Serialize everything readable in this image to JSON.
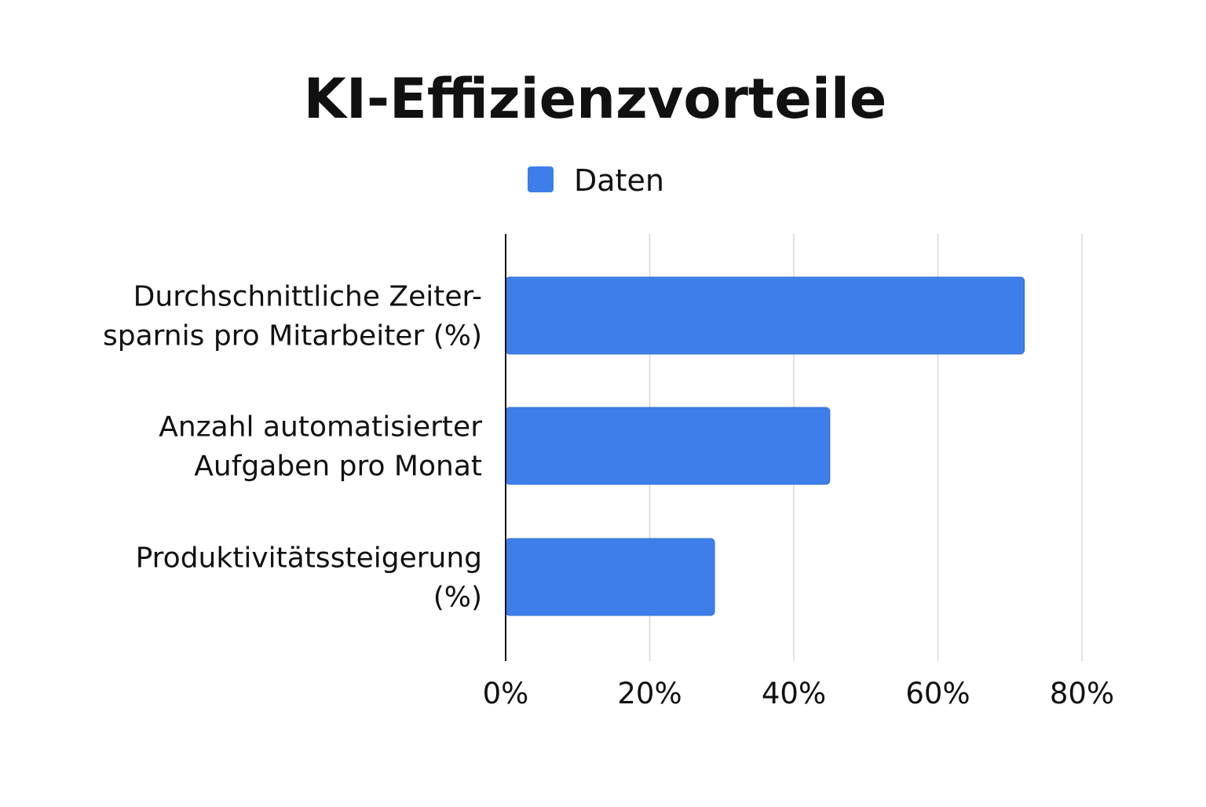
{
  "chart_data": {
    "type": "bar",
    "orientation": "horizontal",
    "title": "KI-Effizienzvorteile",
    "legend": {
      "position": "top",
      "entries": [
        "Daten"
      ]
    },
    "categories": [
      [
        "Durchschnittliche Zeiter-",
        "sparnis pro Mitarbeiter (%)"
      ],
      [
        "Anzahl automatisierter",
        "Aufgaben pro Monat"
      ],
      [
        "Produktivitätssteigerung",
        "(%)"
      ]
    ],
    "series": [
      {
        "name": "Daten",
        "color": "#3d7eea",
        "values": [
          72,
          45,
          29
        ]
      }
    ],
    "x_ticks": [
      "0%",
      "20%",
      "40%",
      "60%",
      "80%"
    ],
    "x_tick_values": [
      0,
      20,
      40,
      60,
      80
    ],
    "xlim": [
      0,
      80
    ],
    "grid": true
  }
}
